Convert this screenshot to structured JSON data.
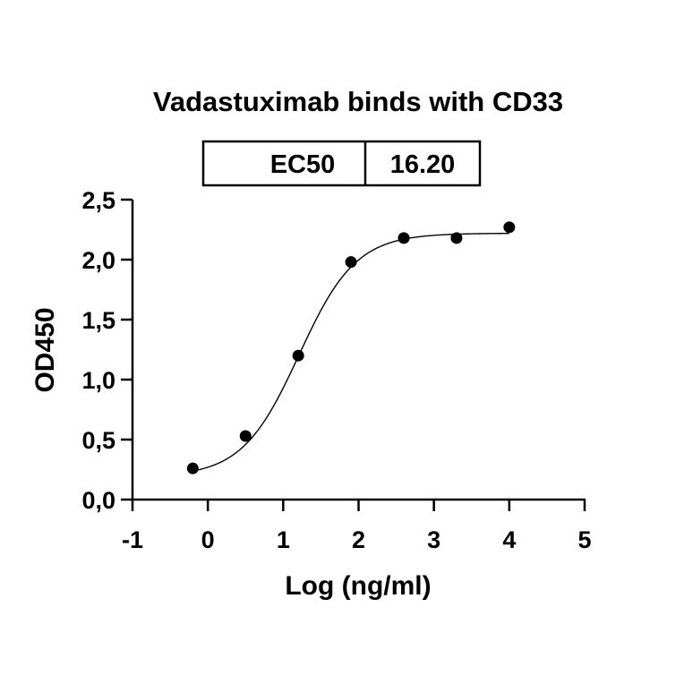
{
  "chart_data": {
    "type": "scatter",
    "title": "Vadastuximab binds with CD33",
    "xlabel": "Log (ng/ml)",
    "ylabel": "OD450",
    "xlim": [
      -1,
      5
    ],
    "ylim": [
      0,
      2.5
    ],
    "x_ticks": [
      "-1",
      "0",
      "1",
      "2",
      "3",
      "4",
      "5"
    ],
    "y_ticks": [
      "0,0",
      "0,5",
      "1,0",
      "1,5",
      "2,0",
      "2,5"
    ],
    "points": [
      {
        "x": -0.2,
        "y": 0.26
      },
      {
        "x": 0.5,
        "y": 0.53
      },
      {
        "x": 1.2,
        "y": 1.2
      },
      {
        "x": 1.9,
        "y": 1.98
      },
      {
        "x": 2.6,
        "y": 2.18
      },
      {
        "x": 3.3,
        "y": 2.18
      },
      {
        "x": 4.0,
        "y": 2.27
      }
    ],
    "fit": {
      "model": "4PL",
      "bottom": 0.19,
      "top": 2.22,
      "logEC50": 1.2095,
      "hill_slope": 1.15,
      "x_range": [
        -0.2,
        4.0
      ]
    },
    "table": {
      "label": "EC50",
      "value": "16.20"
    },
    "grid": false,
    "legend": "none"
  }
}
